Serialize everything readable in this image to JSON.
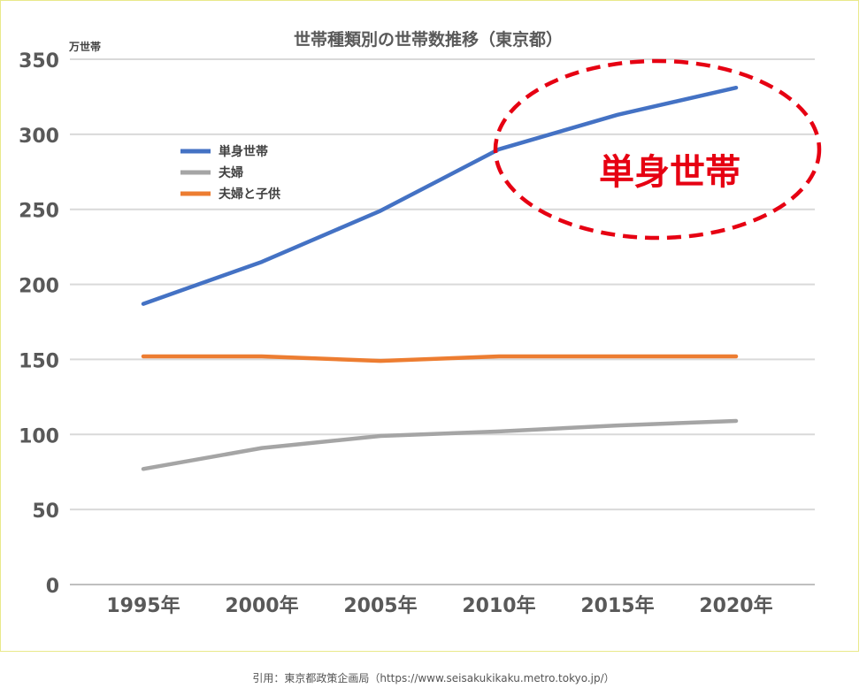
{
  "chart_data": {
    "type": "line",
    "title": "世帯種類別の世帯数推移（東京都）",
    "ylabel": "万世帯",
    "xlabel": "",
    "categories": [
      "1995年",
      "2000年",
      "2005年",
      "2010年",
      "2015年",
      "2020年"
    ],
    "ylim": [
      0,
      350
    ],
    "yticks": [
      "0",
      "50",
      "100",
      "150",
      "200",
      "250",
      "300",
      "350"
    ],
    "grid": true,
    "legend_position": "upper-left",
    "series": [
      {
        "name": "単身世帯",
        "color": "#4472c4",
        "values": [
          187,
          215,
          249,
          290,
          313,
          331
        ]
      },
      {
        "name": "夫婦",
        "color": "#a5a5a5",
        "values": [
          77,
          91,
          99,
          102,
          106,
          109
        ]
      },
      {
        "name": "夫婦と子供",
        "color": "#ed7d31",
        "values": [
          152,
          152,
          149,
          152,
          152,
          152
        ]
      }
    ],
    "annotation": {
      "text": "単身世帯",
      "color": "#e60012"
    }
  },
  "source_note": "引用：東京都政策企画局（https://www.seisakukikaku.metro.tokyo.jp/）"
}
